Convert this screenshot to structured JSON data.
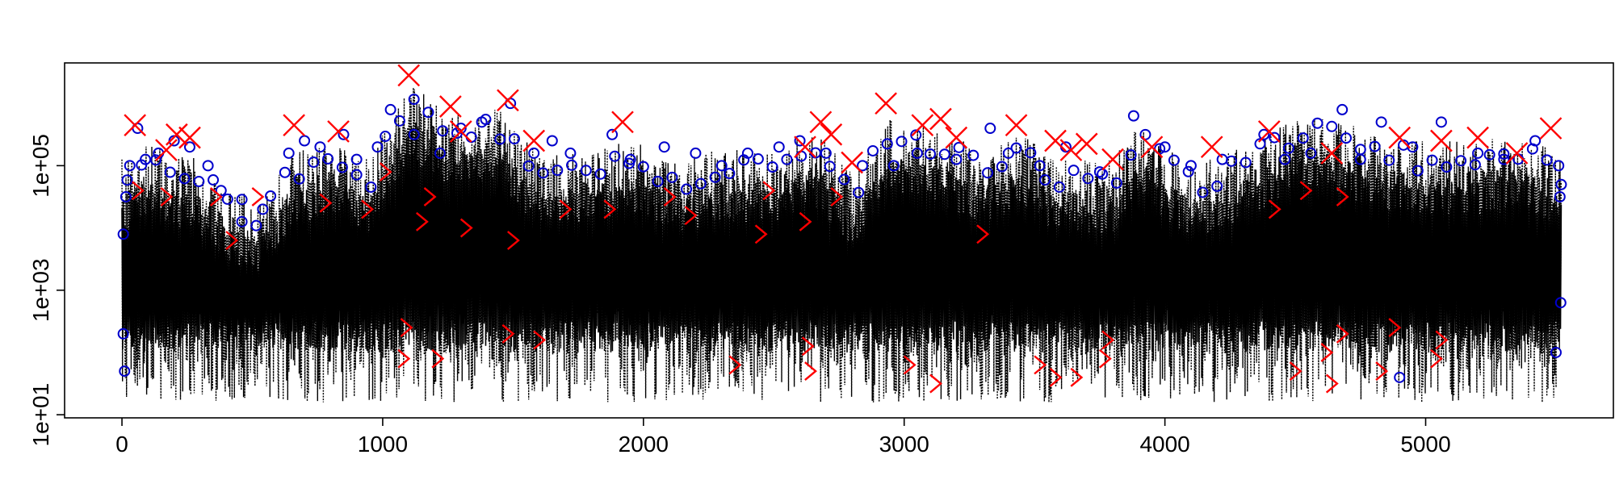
{
  "chart_data": {
    "type": "line",
    "title": "",
    "xlabel": "",
    "ylabel": "",
    "x_range": [
      0,
      5520
    ],
    "xlim": [
      -220,
      5720
    ],
    "ylim_log10": [
      0.95,
      6.65
    ],
    "y_scale": "log",
    "x_ticks": [
      {
        "value": 0,
        "label": "0"
      },
      {
        "value": 1000,
        "label": "1000"
      },
      {
        "value": 2000,
        "label": "2000"
      },
      {
        "value": 3000,
        "label": "3000"
      },
      {
        "value": 4000,
        "label": "4000"
      },
      {
        "value": 5000,
        "label": "5000"
      }
    ],
    "y_ticks": [
      {
        "value": 10,
        "label": "1e+01"
      },
      {
        "value": 1000,
        "label": "1e+03"
      },
      {
        "value": 100000,
        "label": "1e+05"
      }
    ],
    "grid": false,
    "legend": "none",
    "colors": {
      "series_line": "#000000",
      "circle_markers": "#0000cc",
      "cross_markers": "#ff0000",
      "angle_markers": "#ff0000"
    },
    "series": [
      {
        "marker": "dotted-line",
        "note_x": "dense daily series, values range roughly 1e+01 to 4e+06",
        "band": {
          "low_log10": 1.0,
          "high_log10_env": [
            [
              0,
              5.1
            ],
            [
              100,
              5.4
            ],
            [
              200,
              5.2
            ],
            [
              300,
              5.1
            ],
            [
              420,
              4.6
            ],
            [
              520,
              4.5
            ],
            [
              650,
              5.2
            ],
            [
              800,
              5.4
            ],
            [
              950,
              5.1
            ],
            [
              1100,
              6.3
            ],
            [
              1250,
              5.9
            ],
            [
              1450,
              5.9
            ],
            [
              1600,
              5.2
            ],
            [
              1800,
              5.3
            ],
            [
              1950,
              5.4
            ],
            [
              2150,
              5.1
            ],
            [
              2300,
              5.3
            ],
            [
              2500,
              5.2
            ],
            [
              2650,
              5.6
            ],
            [
              2800,
              4.9
            ],
            [
              2950,
              5.8
            ],
            [
              3100,
              5.6
            ],
            [
              3300,
              5.3
            ],
            [
              3450,
              5.5
            ],
            [
              3600,
              5.1
            ],
            [
              3800,
              5.1
            ],
            [
              3900,
              5.7
            ],
            [
              4100,
              5.0
            ],
            [
              4300,
              5.3
            ],
            [
              4500,
              5.8
            ],
            [
              4650,
              5.8
            ],
            [
              4800,
              5.5
            ],
            [
              5000,
              5.4
            ],
            [
              5200,
              5.4
            ],
            [
              5400,
              5.5
            ],
            [
              5520,
              5.1
            ]
          ]
        }
      },
      {
        "marker": "circle",
        "points": [
          [
            5,
            3.9
          ],
          [
            15,
            4.5
          ],
          [
            30,
            5.0
          ],
          [
            60,
            5.6
          ],
          [
            90,
            5.1
          ],
          [
            140,
            5.2
          ],
          [
            200,
            5.4
          ],
          [
            260,
            5.3
          ],
          [
            330,
            5.0
          ],
          [
            380,
            4.6
          ],
          [
            460,
            4.1
          ],
          [
            540,
            4.3
          ],
          [
            640,
            5.2
          ],
          [
            700,
            5.4
          ],
          [
            760,
            5.3
          ],
          [
            850,
            5.5
          ],
          [
            900,
            5.1
          ],
          [
            980,
            5.3
          ],
          [
            1030,
            5.9
          ],
          [
            1120,
            5.5
          ],
          [
            1220,
            5.2
          ],
          [
            1300,
            5.6
          ],
          [
            1380,
            5.7
          ],
          [
            1490,
            6.0
          ],
          [
            1580,
            5.2
          ],
          [
            1650,
            5.4
          ],
          [
            1720,
            5.2
          ],
          [
            1880,
            5.5
          ],
          [
            1950,
            5.1
          ],
          [
            2080,
            5.3
          ],
          [
            2200,
            5.2
          ],
          [
            2300,
            5.0
          ],
          [
            2400,
            5.2
          ],
          [
            2520,
            5.3
          ],
          [
            2600,
            5.4
          ],
          [
            2700,
            5.2
          ],
          [
            2840,
            5.0
          ],
          [
            2960,
            5.0
          ],
          [
            3050,
            5.2
          ],
          [
            3200,
            5.1
          ],
          [
            3330,
            5.6
          ],
          [
            3400,
            5.2
          ],
          [
            3520,
            5.0
          ],
          [
            3620,
            5.3
          ],
          [
            3750,
            4.9
          ],
          [
            3880,
            5.8
          ],
          [
            4000,
            5.3
          ],
          [
            4100,
            5.0
          ],
          [
            4220,
            5.1
          ],
          [
            4380,
            5.5
          ],
          [
            4460,
            5.1
          ],
          [
            4560,
            5.2
          ],
          [
            4680,
            5.9
          ],
          [
            4750,
            5.1
          ],
          [
            4830,
            5.7
          ],
          [
            4950,
            5.3
          ],
          [
            5060,
            5.7
          ],
          [
            5200,
            5.2
          ],
          [
            5300,
            5.1
          ],
          [
            5420,
            5.4
          ],
          [
            5510,
            5.0
          ],
          [
            5515,
            4.5
          ],
          [
            5518,
            2.8
          ],
          [
            5,
            2.3
          ],
          [
            10,
            1.7
          ],
          [
            4900,
            1.6
          ],
          [
            5500,
            2.0
          ]
        ]
      },
      {
        "marker": "cross",
        "points": [
          [
            50,
            5.65
          ],
          [
            170,
            5.25
          ],
          [
            210,
            5.5
          ],
          [
            260,
            5.45
          ],
          [
            660,
            5.65
          ],
          [
            830,
            5.55
          ],
          [
            1100,
            6.45
          ],
          [
            1260,
            5.95
          ],
          [
            1300,
            5.55
          ],
          [
            1480,
            6.05
          ],
          [
            1580,
            5.4
          ],
          [
            1920,
            5.7
          ],
          [
            2620,
            5.3
          ],
          [
            2680,
            5.7
          ],
          [
            2720,
            5.5
          ],
          [
            2800,
            5.05
          ],
          [
            2930,
            6.0
          ],
          [
            3070,
            5.65
          ],
          [
            3140,
            5.75
          ],
          [
            3200,
            5.45
          ],
          [
            3430,
            5.65
          ],
          [
            3580,
            5.4
          ],
          [
            3640,
            5.25
          ],
          [
            3700,
            5.35
          ],
          [
            3800,
            5.1
          ],
          [
            3950,
            5.3
          ],
          [
            4180,
            5.3
          ],
          [
            4400,
            5.55
          ],
          [
            4640,
            5.2
          ],
          [
            4900,
            5.45
          ],
          [
            5060,
            5.4
          ],
          [
            5200,
            5.45
          ],
          [
            5350,
            5.2
          ],
          [
            5480,
            5.6
          ]
        ]
      },
      {
        "marker": "angle",
        "points": [
          [
            60,
            4.6
          ],
          [
            170,
            4.5
          ],
          [
            360,
            4.5
          ],
          [
            420,
            3.8
          ],
          [
            520,
            4.5
          ],
          [
            780,
            4.4
          ],
          [
            940,
            4.3
          ],
          [
            1010,
            4.9
          ],
          [
            1080,
            1.9
          ],
          [
            1090,
            2.4
          ],
          [
            1150,
            4.1
          ],
          [
            1180,
            4.5
          ],
          [
            1210,
            1.9
          ],
          [
            1320,
            4.0
          ],
          [
            1480,
            2.3
          ],
          [
            1500,
            3.8
          ],
          [
            1600,
            2.2
          ],
          [
            1700,
            4.3
          ],
          [
            1870,
            4.3
          ],
          [
            2100,
            4.5
          ],
          [
            2180,
            4.2
          ],
          [
            2350,
            1.8
          ],
          [
            2450,
            3.9
          ],
          [
            2480,
            4.6
          ],
          [
            2620,
            4.1
          ],
          [
            2630,
            2.1
          ],
          [
            2640,
            1.7
          ],
          [
            2740,
            4.5
          ],
          [
            3020,
            1.8
          ],
          [
            3120,
            1.5
          ],
          [
            3300,
            3.9
          ],
          [
            3520,
            1.8
          ],
          [
            3580,
            1.6
          ],
          [
            3660,
            1.6
          ],
          [
            3770,
            1.9
          ],
          [
            3780,
            2.2
          ],
          [
            4420,
            4.3
          ],
          [
            4500,
            1.7
          ],
          [
            4540,
            4.6
          ],
          [
            4620,
            2.0
          ],
          [
            4640,
            1.5
          ],
          [
            4680,
            2.3
          ],
          [
            4680,
            4.5
          ],
          [
            4830,
            1.7
          ],
          [
            4880,
            2.4
          ],
          [
            5040,
            1.9
          ],
          [
            5060,
            2.2
          ]
        ]
      }
    ]
  }
}
